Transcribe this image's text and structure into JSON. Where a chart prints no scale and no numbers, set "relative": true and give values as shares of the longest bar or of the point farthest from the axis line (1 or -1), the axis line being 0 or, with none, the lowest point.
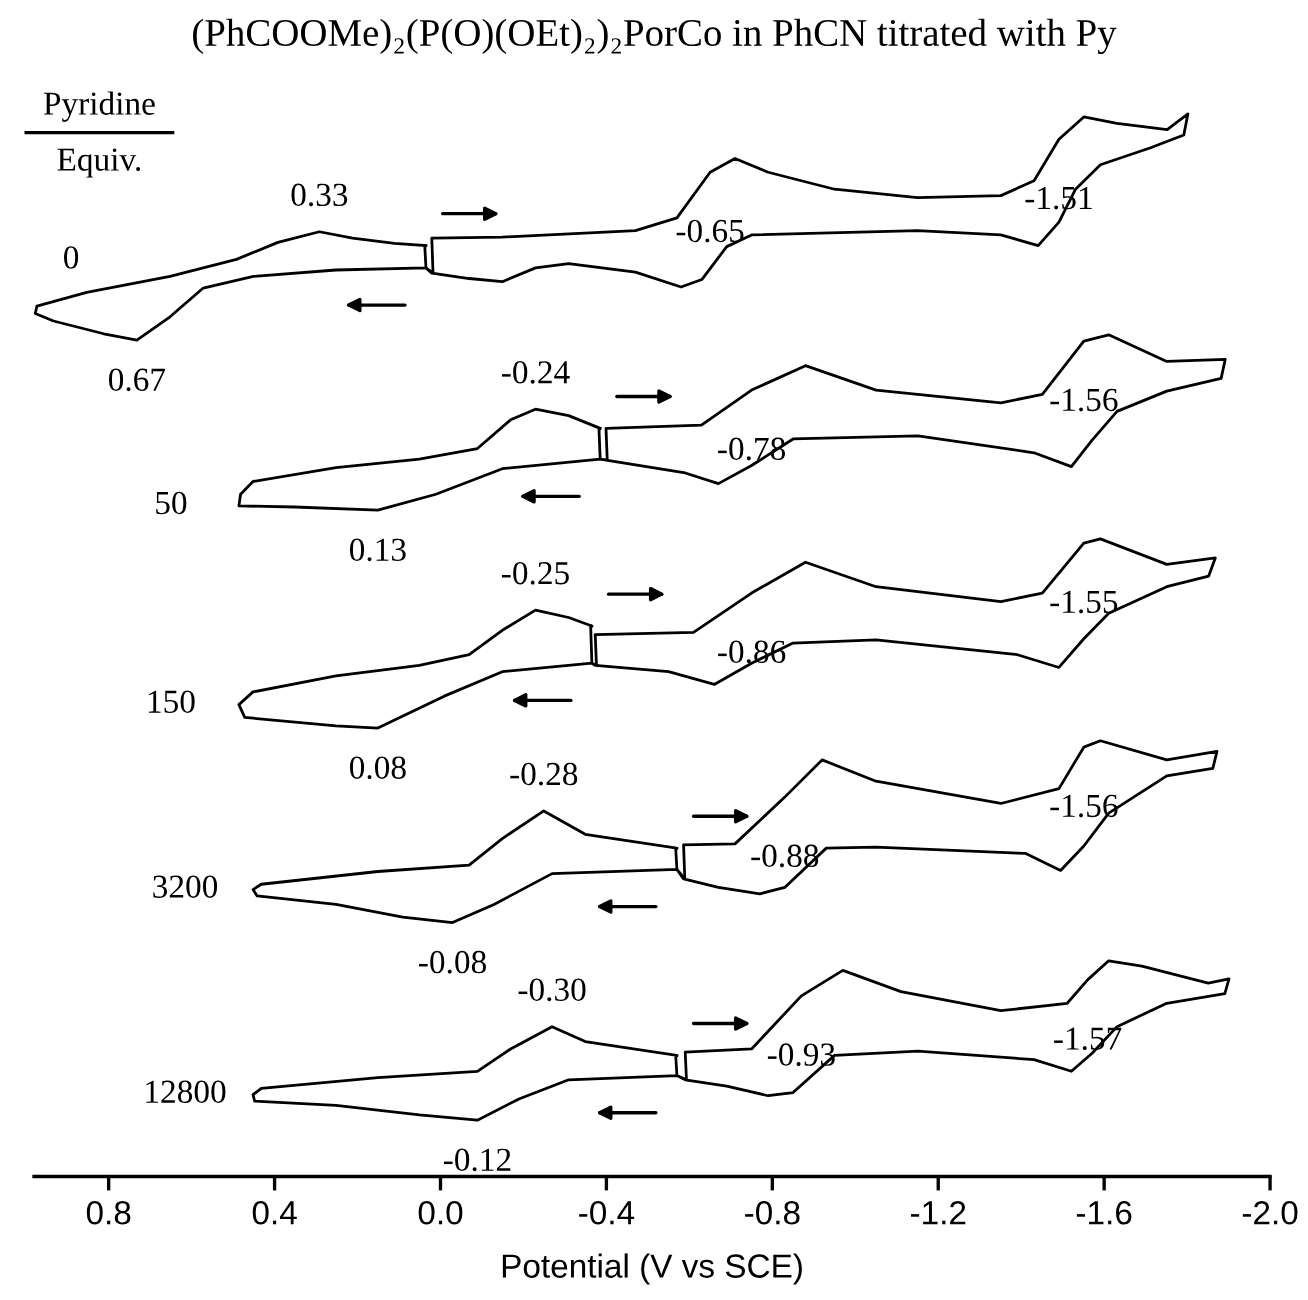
{
  "chart_data": {
    "type": "line",
    "title": "(PhCOOMe)₂(P(O)(OEt)₂)₂PorCo in PhCN titrated with Py",
    "xlabel": "Potential (V vs SCE)",
    "relative": true,
    "legend": false,
    "grid": false,
    "marker": "none",
    "line_style": "solid",
    "xlim": [
      0.98,
      -2.0
    ],
    "xticks": [
      {
        "value": 0.8,
        "label": "0.8"
      },
      {
        "value": 0.4,
        "label": "0.4"
      },
      {
        "value": 0.0,
        "label": "0.0"
      },
      {
        "value": -0.4,
        "label": "-0.4"
      },
      {
        "value": -0.8,
        "label": "-0.8"
      },
      {
        "value": -1.2,
        "label": "-1.2"
      },
      {
        "value": -1.6,
        "label": "-1.6"
      },
      {
        "value": -2.0,
        "label": "-2.0"
      }
    ],
    "series": [
      {
        "name": "0",
        "color": "#000000",
        "x": [
          0.035,
          0.111,
          0.212,
          0.292,
          0.392,
          0.492,
          0.652,
          0.853,
          0.973,
          0.977,
          0.933,
          0.812,
          0.732,
          0.652,
          0.572,
          0.451,
          0.252,
          0.035,
          0.021,
          -0.069,
          -0.149,
          -0.229,
          -0.309,
          -0.47,
          -0.58,
          -0.63,
          -0.69,
          -0.75,
          -1.15,
          -1.351,
          -1.441,
          -1.491,
          -1.531,
          -1.591,
          -1.712,
          -1.792,
          -1.802,
          -1.752,
          -1.631,
          -1.551,
          -1.491,
          -1.431,
          -1.351,
          -1.15,
          -0.95,
          -0.79,
          -0.71,
          -0.65,
          -0.57,
          -0.47,
          -0.149,
          0.021,
          0.018,
          0.035,
          0.038
        ],
        "values": [
          0.876,
          0.878,
          0.883,
          0.889,
          0.879,
          0.863,
          0.847,
          0.832,
          0.819,
          0.812,
          0.805,
          0.793,
          0.787,
          0.809,
          0.836,
          0.847,
          0.853,
          0.855,
          0.85,
          0.845,
          0.842,
          0.855,
          0.859,
          0.851,
          0.837,
          0.844,
          0.875,
          0.886,
          0.89,
          0.886,
          0.876,
          0.898,
          0.929,
          0.952,
          0.968,
          0.98,
          1.0,
          0.985,
          0.991,
          0.997,
          0.976,
          0.937,
          0.923,
          0.921,
          0.929,
          0.945,
          0.958,
          0.945,
          0.902,
          0.89,
          0.884,
          0.883,
          0.85,
          0.855,
          0.876
        ]
      },
      {
        "name": "50",
        "color": "#000000",
        "x": [
          -0.385,
          -0.309,
          -0.229,
          -0.169,
          -0.089,
          0.051,
          0.252,
          0.452,
          0.482,
          0.486,
          0.352,
          0.151,
          0.011,
          -0.149,
          -0.385,
          -0.399,
          -0.59,
          -0.67,
          -0.75,
          -0.85,
          -1.151,
          -1.431,
          -1.521,
          -1.571,
          -1.631,
          -1.751,
          -1.882,
          -1.892,
          -1.751,
          -1.611,
          -1.551,
          -1.451,
          -1.351,
          -1.05,
          -0.88,
          -0.75,
          -0.629,
          -0.399,
          -0.402,
          -0.385,
          -0.382
        ],
        "values": [
          0.704,
          0.716,
          0.722,
          0.712,
          0.685,
          0.675,
          0.667,
          0.654,
          0.642,
          0.631,
          0.63,
          0.627,
          0.642,
          0.666,
          0.675,
          0.674,
          0.662,
          0.652,
          0.669,
          0.694,
          0.697,
          0.681,
          0.668,
          0.693,
          0.72,
          0.739,
          0.751,
          0.769,
          0.767,
          0.792,
          0.786,
          0.736,
          0.728,
          0.74,
          0.763,
          0.74,
          0.707,
          0.704,
          0.674,
          0.675,
          0.704
        ]
      },
      {
        "name": "150",
        "color": "#000000",
        "x": [
          -0.365,
          -0.309,
          -0.229,
          -0.149,
          -0.069,
          0.051,
          0.252,
          0.452,
          0.486,
          0.472,
          0.252,
          0.151,
          -0.009,
          -0.149,
          -0.365,
          -0.373,
          -0.55,
          -0.66,
          -0.75,
          -0.85,
          -1.05,
          -1.391,
          -1.491,
          -1.551,
          -1.611,
          -1.751,
          -1.852,
          -1.868,
          -1.751,
          -1.591,
          -1.551,
          -1.451,
          -1.351,
          -1.05,
          -0.88,
          -0.75,
          -0.61,
          -0.373,
          -0.376,
          -0.365,
          -0.362
        ],
        "values": [
          0.518,
          0.526,
          0.533,
          0.514,
          0.491,
          0.481,
          0.471,
          0.456,
          0.444,
          0.432,
          0.424,
          0.422,
          0.452,
          0.475,
          0.483,
          0.481,
          0.475,
          0.463,
          0.483,
          0.502,
          0.505,
          0.491,
          0.479,
          0.506,
          0.53,
          0.555,
          0.565,
          0.582,
          0.576,
          0.6,
          0.596,
          0.549,
          0.541,
          0.555,
          0.578,
          0.549,
          0.512,
          0.51,
          0.481,
          0.483,
          0.518
        ]
      },
      {
        "name": "3200",
        "color": "#000000",
        "x": [
          -0.57,
          -0.349,
          -0.249,
          -0.149,
          -0.069,
          0.151,
          0.432,
          0.452,
          0.442,
          0.252,
          0.091,
          -0.029,
          -0.129,
          -0.269,
          -0.57,
          -0.586,
          -0.67,
          -0.77,
          -0.83,
          -0.93,
          -1.05,
          -1.411,
          -1.495,
          -1.551,
          -1.611,
          -1.751,
          -1.862,
          -1.872,
          -1.751,
          -1.591,
          -1.551,
          -1.491,
          -1.351,
          -1.05,
          -0.92,
          -0.83,
          -0.71,
          -0.586,
          -0.589,
          -0.57,
          -0.567
        ],
        "values": [
          0.309,
          0.322,
          0.344,
          0.318,
          0.293,
          0.287,
          0.275,
          0.27,
          0.264,
          0.256,
          0.244,
          0.239,
          0.256,
          0.285,
          0.289,
          0.28,
          0.272,
          0.266,
          0.272,
          0.309,
          0.31,
          0.304,
          0.288,
          0.311,
          0.342,
          0.377,
          0.384,
          0.4,
          0.392,
          0.41,
          0.404,
          0.365,
          0.351,
          0.372,
          0.392,
          0.357,
          0.313,
          0.312,
          0.28,
          0.289,
          0.309
        ]
      },
      {
        "name": "12800",
        "color": "#000000",
        "x": [
          -0.57,
          -0.349,
          -0.269,
          -0.169,
          -0.089,
          0.151,
          0.432,
          0.452,
          0.448,
          0.252,
          0.051,
          -0.089,
          -0.189,
          -0.309,
          -0.57,
          -0.59,
          -0.69,
          -0.79,
          -0.85,
          -0.95,
          -1.151,
          -1.431,
          -1.521,
          -1.571,
          -1.631,
          -1.751,
          -1.891,
          -1.901,
          -1.851,
          -1.691,
          -1.611,
          -1.56,
          -1.511,
          -1.351,
          -1.11,
          -0.97,
          -0.87,
          -0.75,
          -0.59,
          -0.593,
          -0.57,
          -0.567
        ],
        "values": [
          0.114,
          0.127,
          0.141,
          0.12,
          0.099,
          0.093,
          0.083,
          0.077,
          0.071,
          0.067,
          0.058,
          0.053,
          0.073,
          0.091,
          0.095,
          0.091,
          0.085,
          0.076,
          0.079,
          0.114,
          0.118,
          0.11,
          0.099,
          0.116,
          0.141,
          0.163,
          0.172,
          0.186,
          0.182,
          0.198,
          0.203,
          0.185,
          0.163,
          0.156,
          0.174,
          0.194,
          0.17,
          0.12,
          0.117,
          0.091,
          0.095,
          0.114
        ]
      }
    ],
    "legend_title": "Pyridine",
    "annotations": [
      "Equiv.",
      {
        "text": "0.33",
        "x": 0.292,
        "y": 0.889
      },
      {
        "text": "0.67",
        "x": 0.732,
        "y": 0.787
      },
      {
        "text": "-0.65",
        "x": -0.65,
        "y": 0.945
      },
      {
        "text": "-1.51",
        "x": -1.491,
        "y": 0.976
      },
      {
        "text": "-0.24",
        "x": -0.229,
        "y": 0.722
      },
      {
        "text": "0.13",
        "x": 0.151,
        "y": 0.627
      },
      {
        "text": "-0.78",
        "x": -0.75,
        "y": 0.74
      },
      {
        "text": "-1.56",
        "x": -1.551,
        "y": 0.786
      },
      {
        "text": "-0.25",
        "x": -0.229,
        "y": 0.533
      },
      {
        "text": "0.08",
        "x": 0.151,
        "y": 0.422
      },
      {
        "text": "-0.86",
        "x": -0.75,
        "y": 0.549
      },
      {
        "text": "-1.55",
        "x": -1.551,
        "y": 0.596
      },
      {
        "text": "-0.28",
        "x": -0.249,
        "y": 0.344
      },
      {
        "text": "-0.08",
        "x": -0.029,
        "y": 0.239
      },
      {
        "text": "-0.88",
        "x": -0.83,
        "y": 0.357
      },
      {
        "text": "-1.56",
        "x": -1.551,
        "y": 0.404
      },
      {
        "text": "-0.30",
        "x": -0.269,
        "y": 0.141
      },
      {
        "text": "-0.12",
        "x": -0.089,
        "y": 0.053
      },
      {
        "text": "-0.93",
        "x": -0.87,
        "y": 0.17
      },
      {
        "text": "-1.57",
        "x": -1.56,
        "y": 0.185
      }
    ]
  }
}
